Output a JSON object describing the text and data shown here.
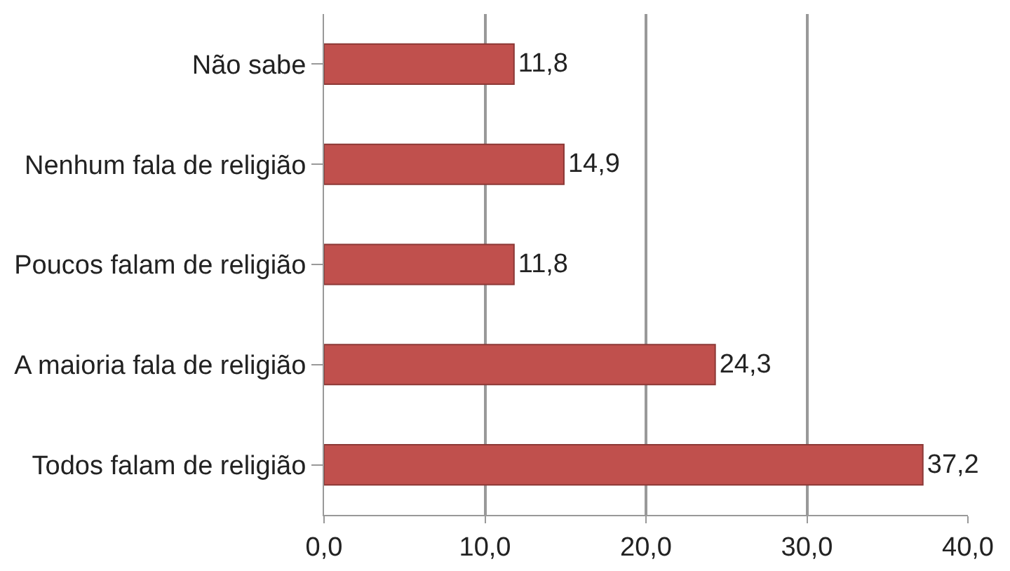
{
  "chart_data": {
    "type": "bar",
    "orientation": "horizontal",
    "categories": [
      "Não sabe",
      "Nenhum fala de religião",
      "Poucos falam de religião",
      "A maioria fala de religião",
      "Todos falam de religião"
    ],
    "values": [
      11.8,
      14.9,
      11.8,
      24.3,
      37.2
    ],
    "value_labels": [
      "11,8",
      "14,9",
      "11,8",
      "24,3",
      "37,2"
    ],
    "color": "#c0504d",
    "xlim": [
      0,
      40
    ],
    "xticks": [
      {
        "value": 0,
        "label": "0,0"
      },
      {
        "value": 10,
        "label": "10,0"
      },
      {
        "value": 20,
        "label": "20,0"
      },
      {
        "value": 30,
        "label": "30,0"
      },
      {
        "value": 40,
        "label": "40,0"
      }
    ],
    "grid": "x"
  }
}
